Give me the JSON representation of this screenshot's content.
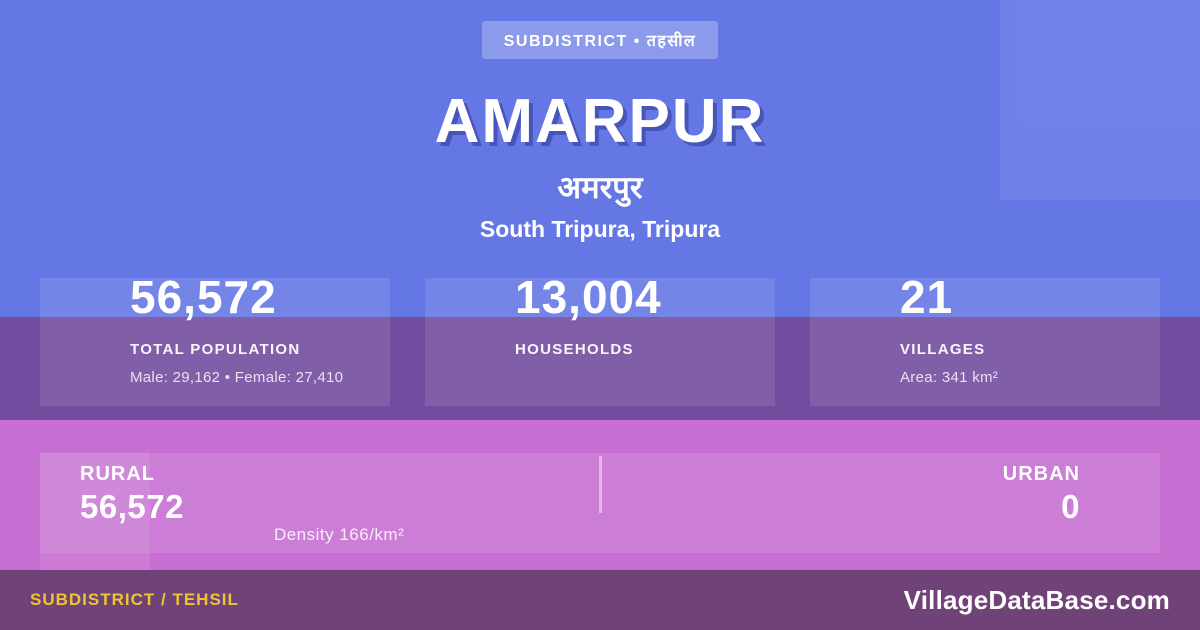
{
  "badge": {
    "label": "SUBDISTRICT • तहसील"
  },
  "header": {
    "title": "AMARPUR",
    "native_name": "अमरपुर",
    "location": "South Tripura, Tripura"
  },
  "stats": [
    {
      "value": "56,572",
      "label": "TOTAL POPULATION",
      "sub": "Male: 29,162 • Female: 27,410"
    },
    {
      "value": "13,004",
      "label": "HOUSEHOLDS",
      "sub": ""
    },
    {
      "value": "21",
      "label": "VILLAGES",
      "sub": "Area: 341 km²"
    }
  ],
  "band": {
    "rural_label": "RURAL",
    "rural_value": "56,572",
    "density": "Density 166/km²",
    "urban_label": "URBAN",
    "urban_value": "0"
  },
  "footer": {
    "type_label": "SUBDISTRICT / TEHSIL",
    "site": "VillageDataBase.com"
  },
  "colors": {
    "background_blue": "#6577e5",
    "band_purple": "#734c9f",
    "band_pink": "#c76fd2",
    "footer_bar": "#6f4377",
    "footer_accent_yellow": "#f0c330",
    "text": "#ffffff"
  }
}
